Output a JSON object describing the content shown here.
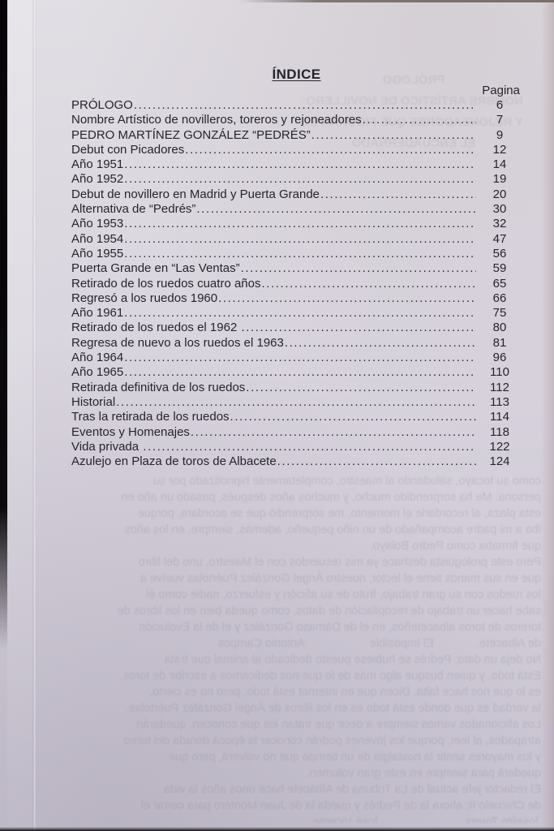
{
  "page": {
    "title": "ÍNDICE",
    "page_column_header": "Pagina",
    "entries": [
      {
        "label": "PRÓLOGO",
        "page": "6"
      },
      {
        "label": "Nombre Artístico de novilleros, toreros y rejoneadores",
        "page": "7"
      },
      {
        "label": "PEDRO MARTÍNEZ GONZÁLEZ “PEDRÉS”",
        "page": "9"
      },
      {
        "label": "Debut con Picadores",
        "page": "12"
      },
      {
        "label": "Año 1951",
        "page": "14"
      },
      {
        "label": "Año 1952",
        "page": "19"
      },
      {
        "label": "Debut de novillero en Madrid y Puerta Grande",
        "page": "20"
      },
      {
        "label": "Alternativa de “Pedrés”",
        "page": "30"
      },
      {
        "label": "Año 1953",
        "page": "32"
      },
      {
        "label": "Año 1954",
        "page": "47"
      },
      {
        "label": "Año 1955",
        "page": "56"
      },
      {
        "label": "Puerta Grande en “Las Ventas”",
        "page": "59"
      },
      {
        "label": "Retirado de los ruedos cuatro años",
        "page": "65"
      },
      {
        "label": "Regresó a los ruedos 1960",
        "page": "66"
      },
      {
        "label": "Año 1961",
        "page": "75"
      },
      {
        "label": "Retirado de los ruedos el 1962 ",
        "page": "80"
      },
      {
        "label": "Regresa de nuevo a los ruedos el 1963",
        "page": "81"
      },
      {
        "label": "Año 1964",
        "page": "96"
      },
      {
        "label": "Año 1965",
        "page": "110"
      },
      {
        "label": "Retirada definitiva de los ruedos",
        "page": "112"
      },
      {
        "label": "Historial",
        "page": "113"
      },
      {
        "label": "Tras la retirada de los ruedos",
        "page": "114"
      },
      {
        "label": "Eventos y Homenajes",
        "page": "118"
      },
      {
        "label": "Vida privada ",
        "page": "122"
      },
      {
        "label": "Azulejo en Plaza de toros de Albacete",
        "page": "124"
      }
    ]
  },
  "ghost_bleedthrough": {
    "upper_lines": [
      "PRÓLOGO",
      "NOMBRE ARTÍSTICO DE NOVILLEROS",
      "Y REJONEADORES QUE FIGURAN ESTE LIB",
      "EL ENCUADERNADO"
    ],
    "lines": [
      "como su tocayo, saludando al maestro, completamente hipnotizado por su",
      "persona. Me ha sorprendido mucho, y muchos años después, pasado un año en",
      "esta plaza, al recordarle el momento, me sorprendió que se acordara, porque",
      "iba a mi padre acompañado de un niño pequeño, además, siempre, en los años",
      "que firmaba como Pedro Bolayo.",
      "Pero este prologuista deshace ya mis recuerdos con el Maestro, uno del libro",
      "que en sus manos tiene el lector, nuestro Ángel González Puértolas vuelve a",
      "los ruedos con su gran trabajo, fruto de su afición y esfuerzo, nadie como él",
      "sabe hacer un trabajo de recopilación de datos, como queda bien en los libros de",
      "toreros de toros albaceteños, en el de Dámaso González y el de la Evolución",
      "de Albacete.             El Imposible                    Antonio Campos",
      "No deja un dato; Pedrés se hubiese puesto dedicado al animal que trata",
      "Está todo, y quien busque algo más de lo que nos dedicamos a escribir de toros,",
      "es lo que nos hace falta. Dicen que en internet está todo, pero no es cierto,",
      "la verdad es que donde está todo es en los libros de Ángel González Puértolas.",
      "Los aficionados vamos siempre a decir que tratan los que conocen, quedarán",
      "atrapados, al leer, porque los jóvenes podrán conocer la época dorada del toreo",
      "y los mayores sentir la nostalgia de un tiempo que no volverá, pero que",
      "quedará para siempre en este gran volumen.",
      "El redactor jefe actual de La Tribuna de Albacete hace unos años la vida",
      "de Chicuelo II; ahora la de Pedrés y queda la de Juan Montero para cerrar el",
      "Joselito Torres                          José Vicente",
      "Juan Bienvenida                          Juan Montes Jiménez"
    ]
  }
}
